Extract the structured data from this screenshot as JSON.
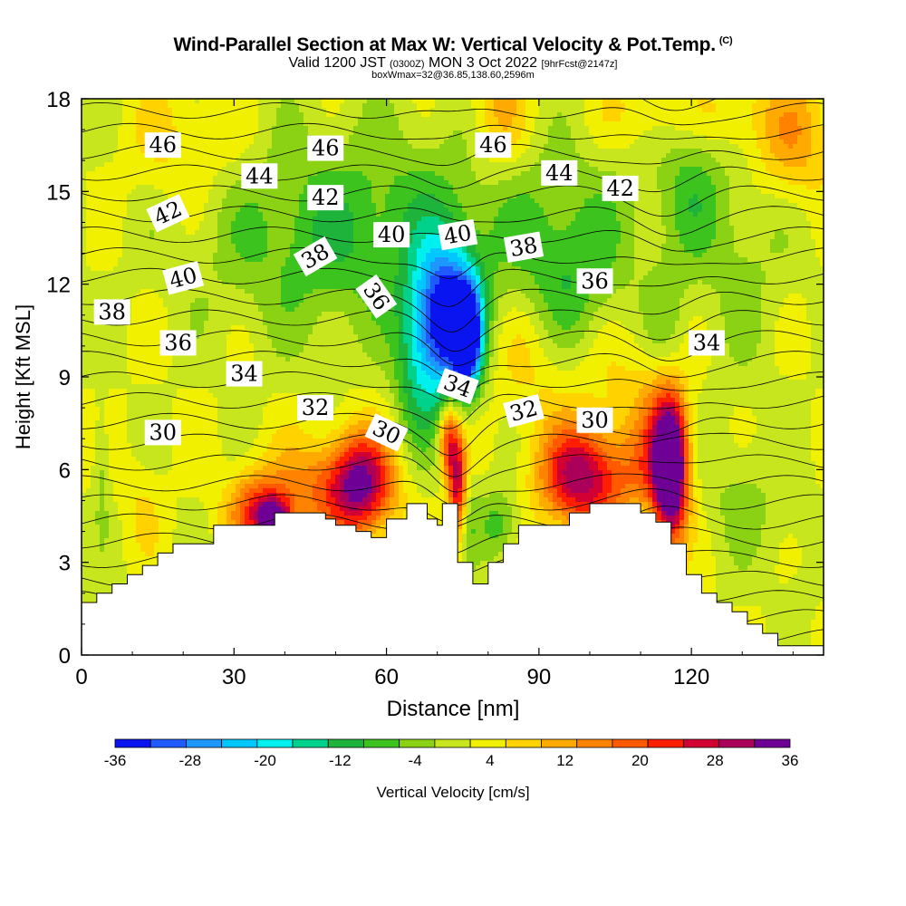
{
  "header": {
    "title": "Wind-Parallel Section at Max W: Vertical Velocity & Pot.Temp.",
    "copyright": "(C)",
    "subtitle_prefix": "Valid 1200 JST",
    "subtitle_utc": "(0300Z)",
    "subtitle_date": "MON 3 Oct 2022",
    "subtitle_fcst": "[9hrFcst@2147z]",
    "subsubtitle": "boxWmax=32@36.85,138.60,2596m"
  },
  "chart_data": {
    "type": "heatmap",
    "xlabel": "Distance [nm]",
    "ylabel": "Height [Kft MSL]",
    "xlim": [
      0,
      146
    ],
    "ylim": [
      0,
      18
    ],
    "x_ticks": [
      0,
      30,
      60,
      90,
      120
    ],
    "y_ticks": [
      0,
      3,
      6,
      9,
      12,
      15,
      18
    ],
    "colorbar": {
      "label": "Vertical Velocity [cm/s]",
      "ticks": [
        -36,
        -28,
        -20,
        -12,
        -4,
        4,
        12,
        20,
        28,
        36
      ],
      "bins": [
        {
          "min": -36,
          "max": -32,
          "color": "#0a14f0"
        },
        {
          "min": -32,
          "max": -28,
          "color": "#1e5aff"
        },
        {
          "min": -28,
          "max": -24,
          "color": "#1e96ff"
        },
        {
          "min": -24,
          "max": -20,
          "color": "#00c8ff"
        },
        {
          "min": -20,
          "max": -16,
          "color": "#00f0f0"
        },
        {
          "min": -16,
          "max": -12,
          "color": "#00d28c"
        },
        {
          "min": -12,
          "max": -8,
          "color": "#1eb43c"
        },
        {
          "min": -8,
          "max": -4,
          "color": "#3cc31e"
        },
        {
          "min": -4,
          "max": 0,
          "color": "#8cd214"
        },
        {
          "min": 0,
          "max": 4,
          "color": "#c8e61e"
        },
        {
          "min": 4,
          "max": 8,
          "color": "#f0f000"
        },
        {
          "min": 8,
          "max": 12,
          "color": "#ffd200"
        },
        {
          "min": 12,
          "max": 16,
          "color": "#ffaa00"
        },
        {
          "min": 16,
          "max": 20,
          "color": "#ff8200"
        },
        {
          "min": 20,
          "max": 24,
          "color": "#ff5a00"
        },
        {
          "min": 24,
          "max": 28,
          "color": "#ff1e00"
        },
        {
          "min": 28,
          "max": 32,
          "color": "#d20032"
        },
        {
          "min": 32,
          "max": 36,
          "color": "#aa005a"
        },
        {
          "min": 36,
          "max": 40,
          "color": "#6e0096"
        }
      ]
    },
    "terrain": [
      [
        0,
        1.7
      ],
      [
        3,
        1.7
      ],
      [
        3,
        2.0
      ],
      [
        6,
        2.0
      ],
      [
        6,
        2.3
      ],
      [
        9,
        2.3
      ],
      [
        9,
        2.6
      ],
      [
        12,
        2.6
      ],
      [
        12,
        2.9
      ],
      [
        15,
        2.9
      ],
      [
        15,
        3.3
      ],
      [
        18,
        3.3
      ],
      [
        18,
        3.6
      ],
      [
        22,
        3.6
      ],
      [
        22,
        3.6
      ],
      [
        26,
        3.6
      ],
      [
        26,
        4.2
      ],
      [
        30,
        4.2
      ],
      [
        38,
        4.2
      ],
      [
        38,
        4.6
      ],
      [
        42,
        4.6
      ],
      [
        48,
        4.6
      ],
      [
        48,
        4.4
      ],
      [
        50,
        4.4
      ],
      [
        50,
        4.2
      ],
      [
        54,
        4.2
      ],
      [
        54,
        4.0
      ],
      [
        57,
        4.0
      ],
      [
        57,
        3.8
      ],
      [
        60,
        3.8
      ],
      [
        60,
        4.4
      ],
      [
        64,
        4.4
      ],
      [
        64,
        4.9
      ],
      [
        68,
        4.9
      ],
      [
        68,
        4.4
      ],
      [
        70,
        4.4
      ],
      [
        70,
        4.2
      ],
      [
        71,
        4.2
      ],
      [
        71,
        4.9
      ],
      [
        74,
        4.9
      ],
      [
        74,
        3.0
      ],
      [
        77,
        3.0
      ],
      [
        77,
        2.3
      ],
      [
        80,
        2.3
      ],
      [
        80,
        3.0
      ],
      [
        83,
        3.0
      ],
      [
        83,
        3.6
      ],
      [
        86,
        3.6
      ],
      [
        86,
        4.2
      ],
      [
        90,
        4.2
      ],
      [
        96,
        4.2
      ],
      [
        96,
        4.6
      ],
      [
        100,
        4.6
      ],
      [
        100,
        4.9
      ],
      [
        110,
        4.9
      ],
      [
        110,
        4.6
      ],
      [
        113,
        4.6
      ],
      [
        113,
        4.3
      ],
      [
        116,
        4.3
      ],
      [
        116,
        3.6
      ],
      [
        119,
        3.6
      ],
      [
        119,
        2.6
      ],
      [
        122,
        2.6
      ],
      [
        122,
        2.0
      ],
      [
        125,
        2.0
      ],
      [
        125,
        1.7
      ],
      [
        128,
        1.7
      ],
      [
        128,
        1.4
      ],
      [
        131,
        1.4
      ],
      [
        131,
        1.0
      ],
      [
        134,
        1.0
      ],
      [
        134,
        0.7
      ],
      [
        137,
        0.7
      ],
      [
        137,
        0.3
      ],
      [
        146,
        0.3
      ]
    ],
    "features": [
      {
        "x": 78,
        "y": 14.5,
        "rx": 50,
        "ry": 3.2,
        "w": -6
      },
      {
        "x": 48,
        "y": 13.2,
        "rx": 22,
        "ry": 3.0,
        "w": -8
      },
      {
        "x": 95,
        "y": 12.0,
        "rx": 10,
        "ry": 2.5,
        "w": -10
      },
      {
        "x": 130,
        "y": 12.5,
        "rx": 8,
        "ry": 4,
        "w": -4
      },
      {
        "x": 120,
        "y": 16,
        "rx": 6,
        "ry": 3,
        "w": -8
      },
      {
        "x": 82,
        "y": 17.5,
        "rx": 6,
        "ry": 2,
        "w": 10
      },
      {
        "x": 120,
        "y": 17.5,
        "rx": 18,
        "ry": 1.5,
        "w": 8
      },
      {
        "x": 140,
        "y": 16.5,
        "rx": 8,
        "ry": 2,
        "w": 10
      },
      {
        "x": 20,
        "y": 16.5,
        "rx": 12,
        "ry": 2,
        "w": 6
      },
      {
        "x": 73,
        "y": 11.0,
        "rx": 6,
        "ry": 2.2,
        "w": -30
      },
      {
        "x": 70,
        "y": 10.2,
        "rx": 5,
        "ry": 3.0,
        "w": -16
      },
      {
        "x": 76,
        "y": 10.2,
        "rx": 2.5,
        "ry": 1.5,
        "w": -40
      },
      {
        "x": 65,
        "y": 9.5,
        "rx": 4,
        "ry": 3,
        "w": -10
      },
      {
        "x": 88,
        "y": 9.8,
        "rx": 8,
        "ry": 2.5,
        "w": 6
      },
      {
        "x": 105,
        "y": 9.0,
        "rx": 10,
        "ry": 2,
        "w": 4
      },
      {
        "x": 55,
        "y": 5.6,
        "rx": 6,
        "ry": 1.6,
        "w": 26
      },
      {
        "x": 48,
        "y": 5.3,
        "rx": 12,
        "ry": 1.6,
        "w": 14
      },
      {
        "x": 35,
        "y": 4.6,
        "rx": 6,
        "ry": 1.2,
        "w": 20
      },
      {
        "x": 38,
        "y": 4.4,
        "rx": 3,
        "ry": 0.6,
        "w": 26
      },
      {
        "x": 97,
        "y": 5.8,
        "rx": 7,
        "ry": 1.6,
        "w": 26
      },
      {
        "x": 105,
        "y": 5.6,
        "rx": 8,
        "ry": 1.8,
        "w": 12
      },
      {
        "x": 116,
        "y": 6.0,
        "rx": 3,
        "ry": 2.2,
        "w": 40
      },
      {
        "x": 114,
        "y": 6.5,
        "rx": 5,
        "ry": 2.5,
        "w": 18
      },
      {
        "x": 72,
        "y": 7.0,
        "rx": 1.8,
        "ry": 1.2,
        "w": 22
      },
      {
        "x": 74,
        "y": 5.5,
        "rx": 1.8,
        "ry": 1.8,
        "w": 28
      },
      {
        "x": 76,
        "y": 4.5,
        "rx": 2,
        "ry": 1.5,
        "w": -6
      },
      {
        "x": 82,
        "y": 4.2,
        "rx": 4,
        "ry": 1.2,
        "w": -10
      },
      {
        "x": 110,
        "y": 4.2,
        "rx": 4,
        "ry": 1,
        "w": -6
      },
      {
        "x": 130,
        "y": 5.0,
        "rx": 8,
        "ry": 2,
        "w": -5
      },
      {
        "x": 4,
        "y": 6.0,
        "rx": 1.5,
        "ry": 2,
        "w": -6
      },
      {
        "x": 12,
        "y": 4.8,
        "rx": 4,
        "ry": 1.5,
        "w": 4
      },
      {
        "x": 140,
        "y": 3.5,
        "rx": 4,
        "ry": 2,
        "w": -2
      },
      {
        "x": 115,
        "y": 10.5,
        "rx": 4,
        "ry": 2,
        "w": -6
      }
    ],
    "theta_labels": [
      {
        "text": "46",
        "x": 16,
        "y": 16.5,
        "rot": 0
      },
      {
        "text": "46",
        "x": 48,
        "y": 16.4,
        "rot": 0
      },
      {
        "text": "46",
        "x": 81,
        "y": 16.5,
        "rot": 0
      },
      {
        "text": "44",
        "x": 35,
        "y": 15.5,
        "rot": 0
      },
      {
        "text": "44",
        "x": 94,
        "y": 15.6,
        "rot": 0
      },
      {
        "text": "42",
        "x": 17,
        "y": 14.3,
        "rot": -25
      },
      {
        "text": "42",
        "x": 48,
        "y": 14.8,
        "rot": 0
      },
      {
        "text": "42",
        "x": 106,
        "y": 15.1,
        "rot": 0
      },
      {
        "text": "40",
        "x": 20,
        "y": 12.2,
        "rot": -15
      },
      {
        "text": "40",
        "x": 61,
        "y": 13.6,
        "rot": 0
      },
      {
        "text": "40",
        "x": 74,
        "y": 13.6,
        "rot": -10
      },
      {
        "text": "38",
        "x": 6,
        "y": 11.1,
        "rot": 0
      },
      {
        "text": "38",
        "x": 46,
        "y": 12.9,
        "rot": -30
      },
      {
        "text": "38",
        "x": 87,
        "y": 13.2,
        "rot": -10
      },
      {
        "text": "36",
        "x": 19,
        "y": 10.1,
        "rot": 0
      },
      {
        "text": "36",
        "x": 58,
        "y": 11.6,
        "rot": 55
      },
      {
        "text": "36",
        "x": 101,
        "y": 12.1,
        "rot": 0
      },
      {
        "text": "34",
        "x": 32,
        "y": 9.1,
        "rot": 0
      },
      {
        "text": "34",
        "x": 74,
        "y": 8.7,
        "rot": 20
      },
      {
        "text": "34",
        "x": 123,
        "y": 10.1,
        "rot": 0
      },
      {
        "text": "32",
        "x": 46,
        "y": 8.0,
        "rot": 0
      },
      {
        "text": "32",
        "x": 87,
        "y": 7.9,
        "rot": -15
      },
      {
        "text": "30",
        "x": 16,
        "y": 7.2,
        "rot": 0
      },
      {
        "text": "30",
        "x": 60,
        "y": 7.2,
        "rot": 25
      },
      {
        "text": "30",
        "x": 101,
        "y": 7.6,
        "rot": 0
      }
    ]
  }
}
